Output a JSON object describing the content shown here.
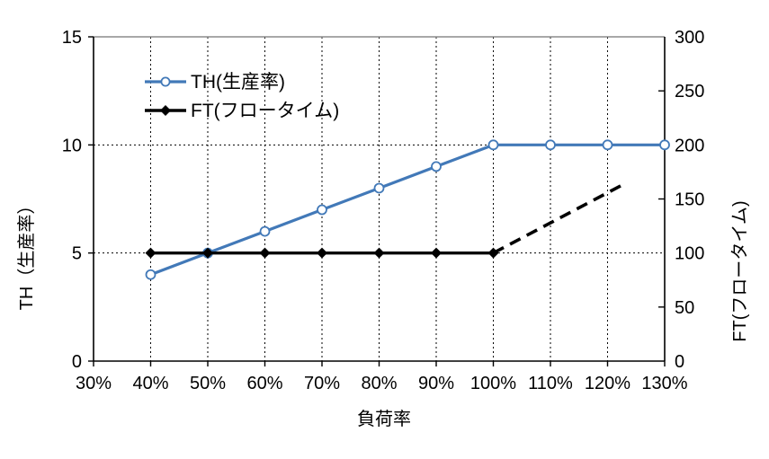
{
  "legend": {
    "items": [
      "TH(生産率)",
      "FT(フロータイム)"
    ]
  },
  "axes": {
    "left_title": "TH（生産率）",
    "right_title": "FT(フロータイム)",
    "x_title": "負荷率"
  },
  "colors": {
    "th_blue": "#4279b8",
    "ft_black": "#000000",
    "top_border_gray": "#8c8c8c",
    "axis_black": "#000000"
  },
  "chart_data": {
    "type": "line",
    "title": "",
    "xlabel": "負荷率",
    "grid": "dashed",
    "legend_position": "inside-top-left",
    "x_axis": {
      "tick_labels": [
        "30%",
        "40%",
        "50%",
        "60%",
        "70%",
        "80%",
        "90%",
        "100%",
        "110%",
        "120%",
        "130%"
      ],
      "tick_values": [
        30,
        40,
        50,
        60,
        70,
        80,
        90,
        100,
        110,
        120,
        130
      ],
      "range": [
        30,
        130
      ],
      "gridlines_at": [
        40,
        50,
        60,
        70,
        80,
        90,
        100,
        110,
        120
      ]
    },
    "y_left": {
      "label": "TH（生産率）",
      "range": [
        0,
        15
      ],
      "ticks": [
        0,
        5,
        10,
        15
      ],
      "gridlines_at": [
        5,
        10
      ]
    },
    "y_right": {
      "label": "FT(フロータイム)",
      "range": [
        0,
        300
      ],
      "ticks": [
        0,
        50,
        100,
        150,
        200,
        250,
        300
      ],
      "inner_ticks": [
        50,
        150,
        250
      ]
    },
    "series": [
      {
        "name": "TH(生産率)",
        "axis": "left",
        "color": "#4279b8",
        "marker": "open-circle",
        "line_style": "solid",
        "line_width": 3.2,
        "x": [
          40,
          50,
          60,
          70,
          80,
          90,
          100,
          110,
          120,
          130
        ],
        "values": [
          4,
          5,
          6,
          7,
          8,
          9,
          10,
          10,
          10,
          10
        ]
      },
      {
        "name": "FT(フロータイム)",
        "axis": "right",
        "color": "#000000",
        "marker": "filled-diamond",
        "line_style": "solid",
        "line_width": 3.4,
        "x": [
          40,
          50,
          60,
          70,
          80,
          90,
          100
        ],
        "values": [
          100,
          100,
          100,
          100,
          100,
          100,
          100
        ]
      },
      {
        "name": "FT(フロータイム) dashed-extension",
        "axis": "right",
        "color": "#000000",
        "marker": "none",
        "line_style": "dashed",
        "line_width": 3.6,
        "x": [
          100,
          122.6
        ],
        "values": [
          100,
          163
        ]
      }
    ]
  }
}
